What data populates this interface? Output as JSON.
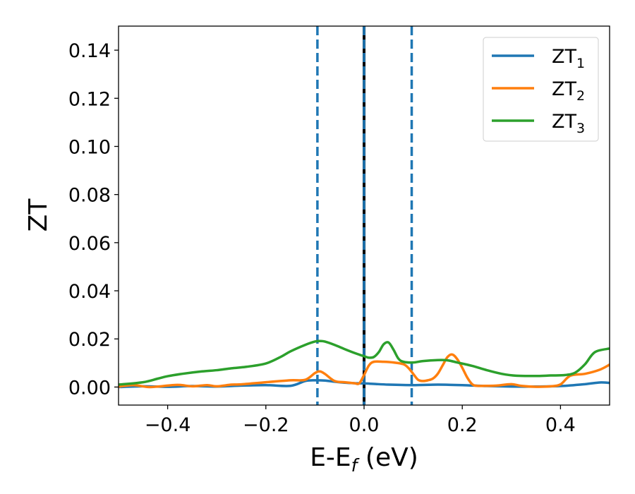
{
  "chart_data": {
    "type": "line",
    "title": "",
    "xlabel": "E-E",
    "xlabel_sub": "f",
    "xlabel_suffix": " (eV)",
    "ylabel": "ZT",
    "xlim": [
      -0.5,
      0.5
    ],
    "ylim": [
      -0.0075,
      0.15
    ],
    "x_ticks": [
      -0.4,
      -0.2,
      0.0,
      0.2,
      0.4
    ],
    "x_tick_labels": [
      "−0.4",
      "−0.2",
      "0.0",
      "0.2",
      "0.4"
    ],
    "y_ticks": [
      0.0,
      0.02,
      0.04,
      0.06,
      0.08,
      0.1,
      0.12,
      0.14
    ],
    "y_tick_labels": [
      "0.00",
      "0.02",
      "0.04",
      "0.06",
      "0.08",
      "0.10",
      "0.12",
      "0.14"
    ],
    "grid": false,
    "legend_position": "top-right",
    "vertical_lines": [
      {
        "x": -0.095,
        "style": "dashed",
        "color": "#1f77b4"
      },
      {
        "x": 0.0,
        "style": "solid",
        "color": "#000000"
      },
      {
        "x": 0.0,
        "style": "dashed",
        "color": "#1f77b4"
      },
      {
        "x": 0.097,
        "style": "dashed",
        "color": "#1f77b4"
      }
    ],
    "series": [
      {
        "name": "ZT",
        "name_sub": "1",
        "color": "#1f77b4",
        "x": [
          -0.5,
          -0.45,
          -0.4,
          -0.35,
          -0.3,
          -0.25,
          -0.2,
          -0.15,
          -0.12,
          -0.1,
          -0.08,
          -0.06,
          -0.04,
          -0.02,
          0.0,
          0.02,
          0.05,
          0.1,
          0.15,
          0.2,
          0.25,
          0.3,
          0.35,
          0.4,
          0.45,
          0.48,
          0.5
        ],
        "y": [
          0.0,
          0.0003,
          0.0001,
          0.0004,
          0.0002,
          0.0006,
          0.0008,
          0.0005,
          0.0025,
          0.0028,
          0.0027,
          0.0022,
          0.0018,
          0.0016,
          0.0015,
          0.0013,
          0.001,
          0.0008,
          0.001,
          0.0008,
          0.0004,
          0.0002,
          0.0002,
          0.0004,
          0.0012,
          0.0019,
          0.0017
        ]
      },
      {
        "name": "ZT",
        "name_sub": "2",
        "color": "#ff7f0e",
        "x": [
          -0.5,
          -0.47,
          -0.44,
          -0.42,
          -0.38,
          -0.35,
          -0.32,
          -0.3,
          -0.27,
          -0.25,
          -0.2,
          -0.15,
          -0.12,
          -0.1,
          -0.09,
          -0.08,
          -0.06,
          -0.04,
          -0.02,
          -0.01,
          0.0,
          0.01,
          0.02,
          0.04,
          0.06,
          0.08,
          0.09,
          0.1,
          0.11,
          0.12,
          0.13,
          0.14,
          0.15,
          0.16,
          0.17,
          0.18,
          0.19,
          0.2,
          0.21,
          0.22,
          0.23,
          0.25,
          0.27,
          0.3,
          0.32,
          0.35,
          0.38,
          0.4,
          0.42,
          0.45,
          0.48,
          0.5
        ],
        "y": [
          0.0002,
          0.0008,
          0.0,
          0.0002,
          0.0009,
          0.0003,
          0.0008,
          0.0003,
          0.001,
          0.0011,
          0.002,
          0.0028,
          0.003,
          0.0058,
          0.0065,
          0.0055,
          0.0025,
          0.002,
          0.0016,
          0.0015,
          0.005,
          0.009,
          0.0105,
          0.0105,
          0.0102,
          0.0095,
          0.008,
          0.0055,
          0.003,
          0.0025,
          0.0028,
          0.0035,
          0.0055,
          0.009,
          0.0125,
          0.0135,
          0.0115,
          0.008,
          0.004,
          0.0012,
          0.0005,
          0.0005,
          0.0006,
          0.0012,
          0.0005,
          0.0001,
          0.0003,
          0.0011,
          0.0047,
          0.0055,
          0.0072,
          0.0093
        ]
      },
      {
        "name": "ZT",
        "name_sub": "3",
        "color": "#2ca02c",
        "x": [
          -0.5,
          -0.45,
          -0.42,
          -0.4,
          -0.37,
          -0.33,
          -0.3,
          -0.27,
          -0.24,
          -0.2,
          -0.17,
          -0.15,
          -0.12,
          -0.1,
          -0.09,
          -0.08,
          -0.06,
          -0.04,
          -0.02,
          0.0,
          0.01,
          0.02,
          0.03,
          0.04,
          0.05,
          0.06,
          0.07,
          0.08,
          0.1,
          0.12,
          0.15,
          0.17,
          0.19,
          0.22,
          0.25,
          0.28,
          0.31,
          0.35,
          0.38,
          0.41,
          0.43,
          0.45,
          0.47,
          0.5
        ],
        "y": [
          0.001,
          0.002,
          0.0035,
          0.0045,
          0.0055,
          0.0065,
          0.007,
          0.0078,
          0.0084,
          0.0098,
          0.0125,
          0.0148,
          0.0175,
          0.0189,
          0.0191,
          0.0189,
          0.0175,
          0.0158,
          0.0142,
          0.0128,
          0.0122,
          0.0125,
          0.0145,
          0.0178,
          0.0185,
          0.0155,
          0.0118,
          0.0105,
          0.0102,
          0.0108,
          0.0112,
          0.0111,
          0.0102,
          0.0088,
          0.007,
          0.0055,
          0.0047,
          0.0046,
          0.0048,
          0.005,
          0.006,
          0.0095,
          0.0145,
          0.016
        ]
      }
    ]
  }
}
